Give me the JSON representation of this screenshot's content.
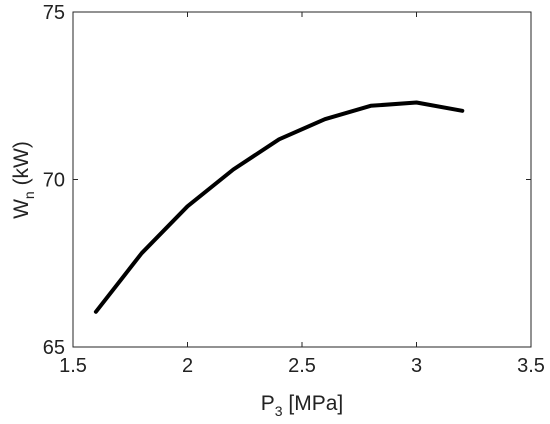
{
  "chart_data": {
    "type": "line",
    "title": "",
    "xlabel": {
      "main": "P",
      "sub": "3",
      "unit": " [MPa]"
    },
    "ylabel": {
      "main": "W",
      "sub": "n",
      "unit": " (kW)"
    },
    "xlim": [
      1.5,
      3.5
    ],
    "ylim": [
      65,
      75
    ],
    "xticks": [
      1.5,
      2,
      2.5,
      3,
      3.5
    ],
    "xtick_labels": [
      "1.5",
      "2",
      "2.5",
      "3",
      "3.5"
    ],
    "yticks": [
      65,
      70,
      75
    ],
    "ytick_labels": [
      "65",
      "70",
      "75"
    ],
    "grid": false,
    "legend": "none",
    "series": [
      {
        "color": "#000000",
        "x": [
          1.6,
          1.8,
          2.0,
          2.2,
          2.4,
          2.6,
          2.8,
          3.0,
          3.2
        ],
        "y": [
          66.05,
          67.8,
          69.2,
          70.3,
          71.2,
          71.8,
          72.2,
          72.3,
          72.05
        ]
      }
    ]
  }
}
